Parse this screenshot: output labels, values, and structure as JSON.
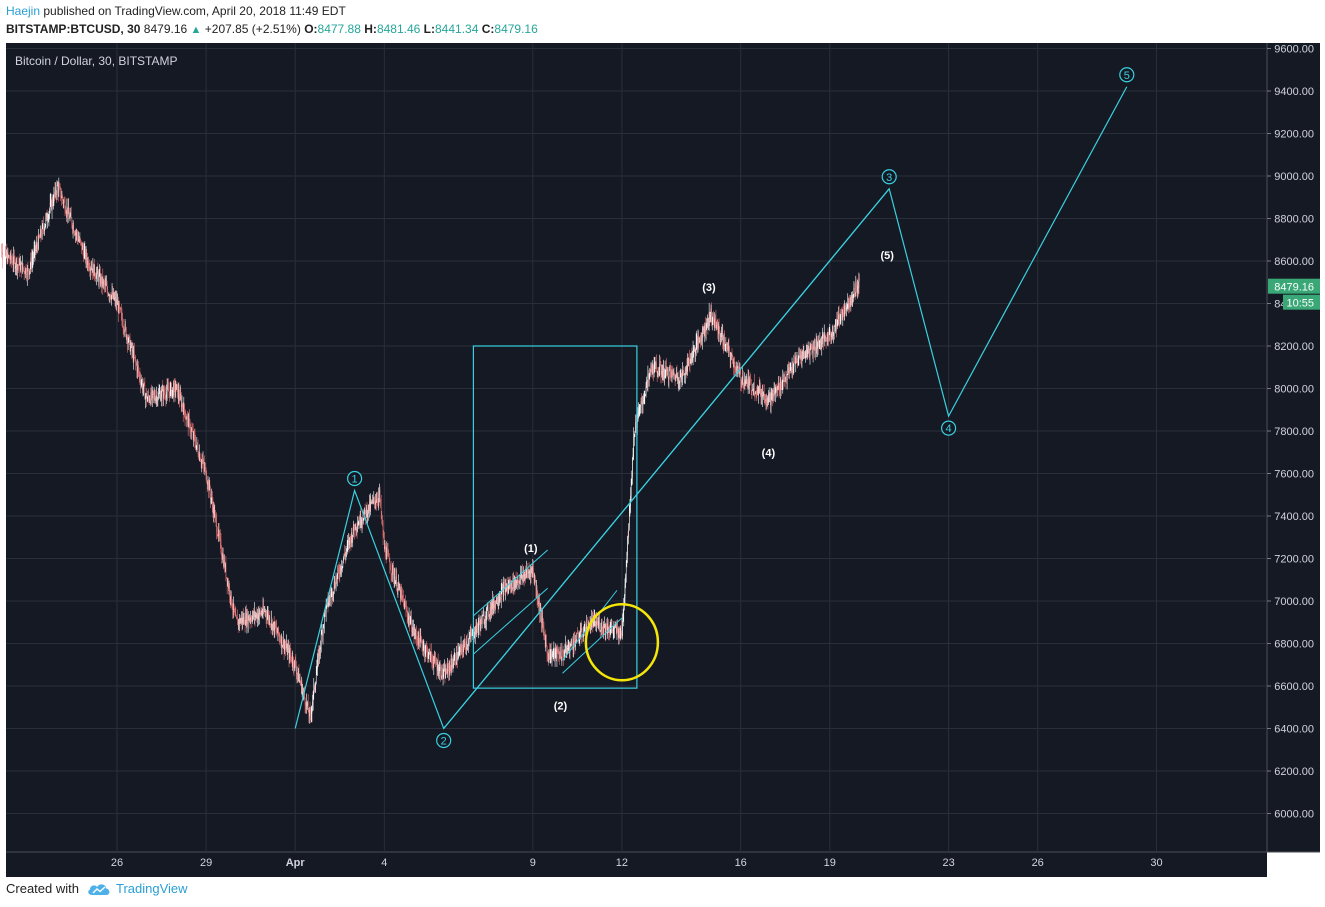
{
  "header": {
    "author": "Haejin",
    "published_text": "published on TradingView.com, April 20, 2018 11:49 EDT",
    "symbol": "BITSTAMP:BTCUSD, 30",
    "last": "8479.16",
    "change": "+207.85 (+2.51%)",
    "open_label": "O:",
    "open": "8477.88",
    "high_label": "H:",
    "high": "8481.46",
    "low_label": "L:",
    "low": "8441.34",
    "close_label": "C:",
    "close": "8479.16"
  },
  "footer": {
    "created_with": "Created with",
    "brand": "TradingView",
    "logo_icon": "tradingview-cloud-icon"
  },
  "colors": {
    "background": "#151924",
    "grid": "#2a2e39",
    "bull": "#ffffff",
    "bear": "#e57373",
    "annotation": "#3ad0e0",
    "highlight": "#f5e60a",
    "price_badge": "#3aa876"
  },
  "chart_data": {
    "type": "candlestick",
    "title": "Bitcoin / Dollar, 30, BITSTAMP",
    "y_axis": {
      "ticks": [
        "9600.00",
        "9400.00",
        "9200.00",
        "9000.00",
        "8800.00",
        "8600.00",
        "8400.00",
        "8200.00",
        "8000.00",
        "7800.00",
        "7600.00",
        "7400.00",
        "7200.00",
        "7000.00",
        "6800.00",
        "6600.00",
        "6400.00",
        "6200.00",
        "6000.00"
      ],
      "range": [
        5800,
        9650
      ]
    },
    "x_axis": {
      "ticks": [
        "26",
        "29",
        "Apr",
        "4",
        "9",
        "12",
        "16",
        "19",
        "23",
        "26",
        "30"
      ]
    },
    "last_price_label": "8479.16",
    "countdown_label": "10:55",
    "price_path": [
      {
        "t": "Mar 22",
        "p": 8650
      },
      {
        "t": "Mar 23",
        "p": 8550
      },
      {
        "t": "Mar 24",
        "p": 8950
      },
      {
        "t": "Mar 25",
        "p": 8600
      },
      {
        "t": "Mar 26",
        "p": 8400
      },
      {
        "t": "Mar 27",
        "p": 7950
      },
      {
        "t": "Mar 28",
        "p": 8000
      },
      {
        "t": "Mar 29",
        "p": 7600
      },
      {
        "t": "Mar 30",
        "p": 6900
      },
      {
        "t": "Mar 31",
        "p": 6950
      },
      {
        "t": "Apr 1",
        "p": 6700
      },
      {
        "t": "Apr 1 12:00",
        "p": 6450
      },
      {
        "t": "Apr 2",
        "p": 6950
      },
      {
        "t": "Apr 3",
        "p": 7350
      },
      {
        "t": "Apr 3 20:00",
        "p": 7500
      },
      {
        "t": "Apr 4",
        "p": 7250
      },
      {
        "t": "Apr 5",
        "p": 6850
      },
      {
        "t": "Apr 6",
        "p": 6650
      },
      {
        "t": "Apr 7",
        "p": 6850
      },
      {
        "t": "Apr 8",
        "p": 7050
      },
      {
        "t": "Apr 9",
        "p": 7150
      },
      {
        "t": "Apr 9 12:00",
        "p": 6750
      },
      {
        "t": "Apr 10",
        "p": 6750
      },
      {
        "t": "Apr 11",
        "p": 6900
      },
      {
        "t": "Apr 12",
        "p": 6850
      },
      {
        "t": "Apr 12 10:00",
        "p": 7800
      },
      {
        "t": "Apr 13",
        "p": 8100
      },
      {
        "t": "Apr 14",
        "p": 8050
      },
      {
        "t": "Apr 15",
        "p": 8350
      },
      {
        "t": "Apr 16",
        "p": 8050
      },
      {
        "t": "Apr 17",
        "p": 7950
      },
      {
        "t": "Apr 18",
        "p": 8150
      },
      {
        "t": "Apr 19",
        "p": 8250
      },
      {
        "t": "Apr 20",
        "p": 8500
      }
    ],
    "annotations": {
      "wave_path": [
        {
          "label": "",
          "t": "Apr 1",
          "p": 6400
        },
        {
          "label": "1",
          "t": "Apr 3",
          "p": 7520
        },
        {
          "label": "2",
          "t": "Apr 6",
          "p": 6400
        },
        {
          "label": "3",
          "t": "Apr 21",
          "p": 8940
        },
        {
          "label": "4",
          "t": "Apr 23",
          "p": 7870
        },
        {
          "label": "5",
          "t": "Apr 29",
          "p": 9420
        }
      ],
      "subwave_labels": [
        "(1)",
        "(2)",
        "(3)",
        "(4)",
        "(5)"
      ],
      "rectangle": {
        "t_start": "Apr 7",
        "t_end": "Apr 12",
        "p_low": 6590,
        "p_high": 8200
      },
      "highlight_circle": {
        "t": "Apr 12",
        "p": 6900
      }
    }
  }
}
